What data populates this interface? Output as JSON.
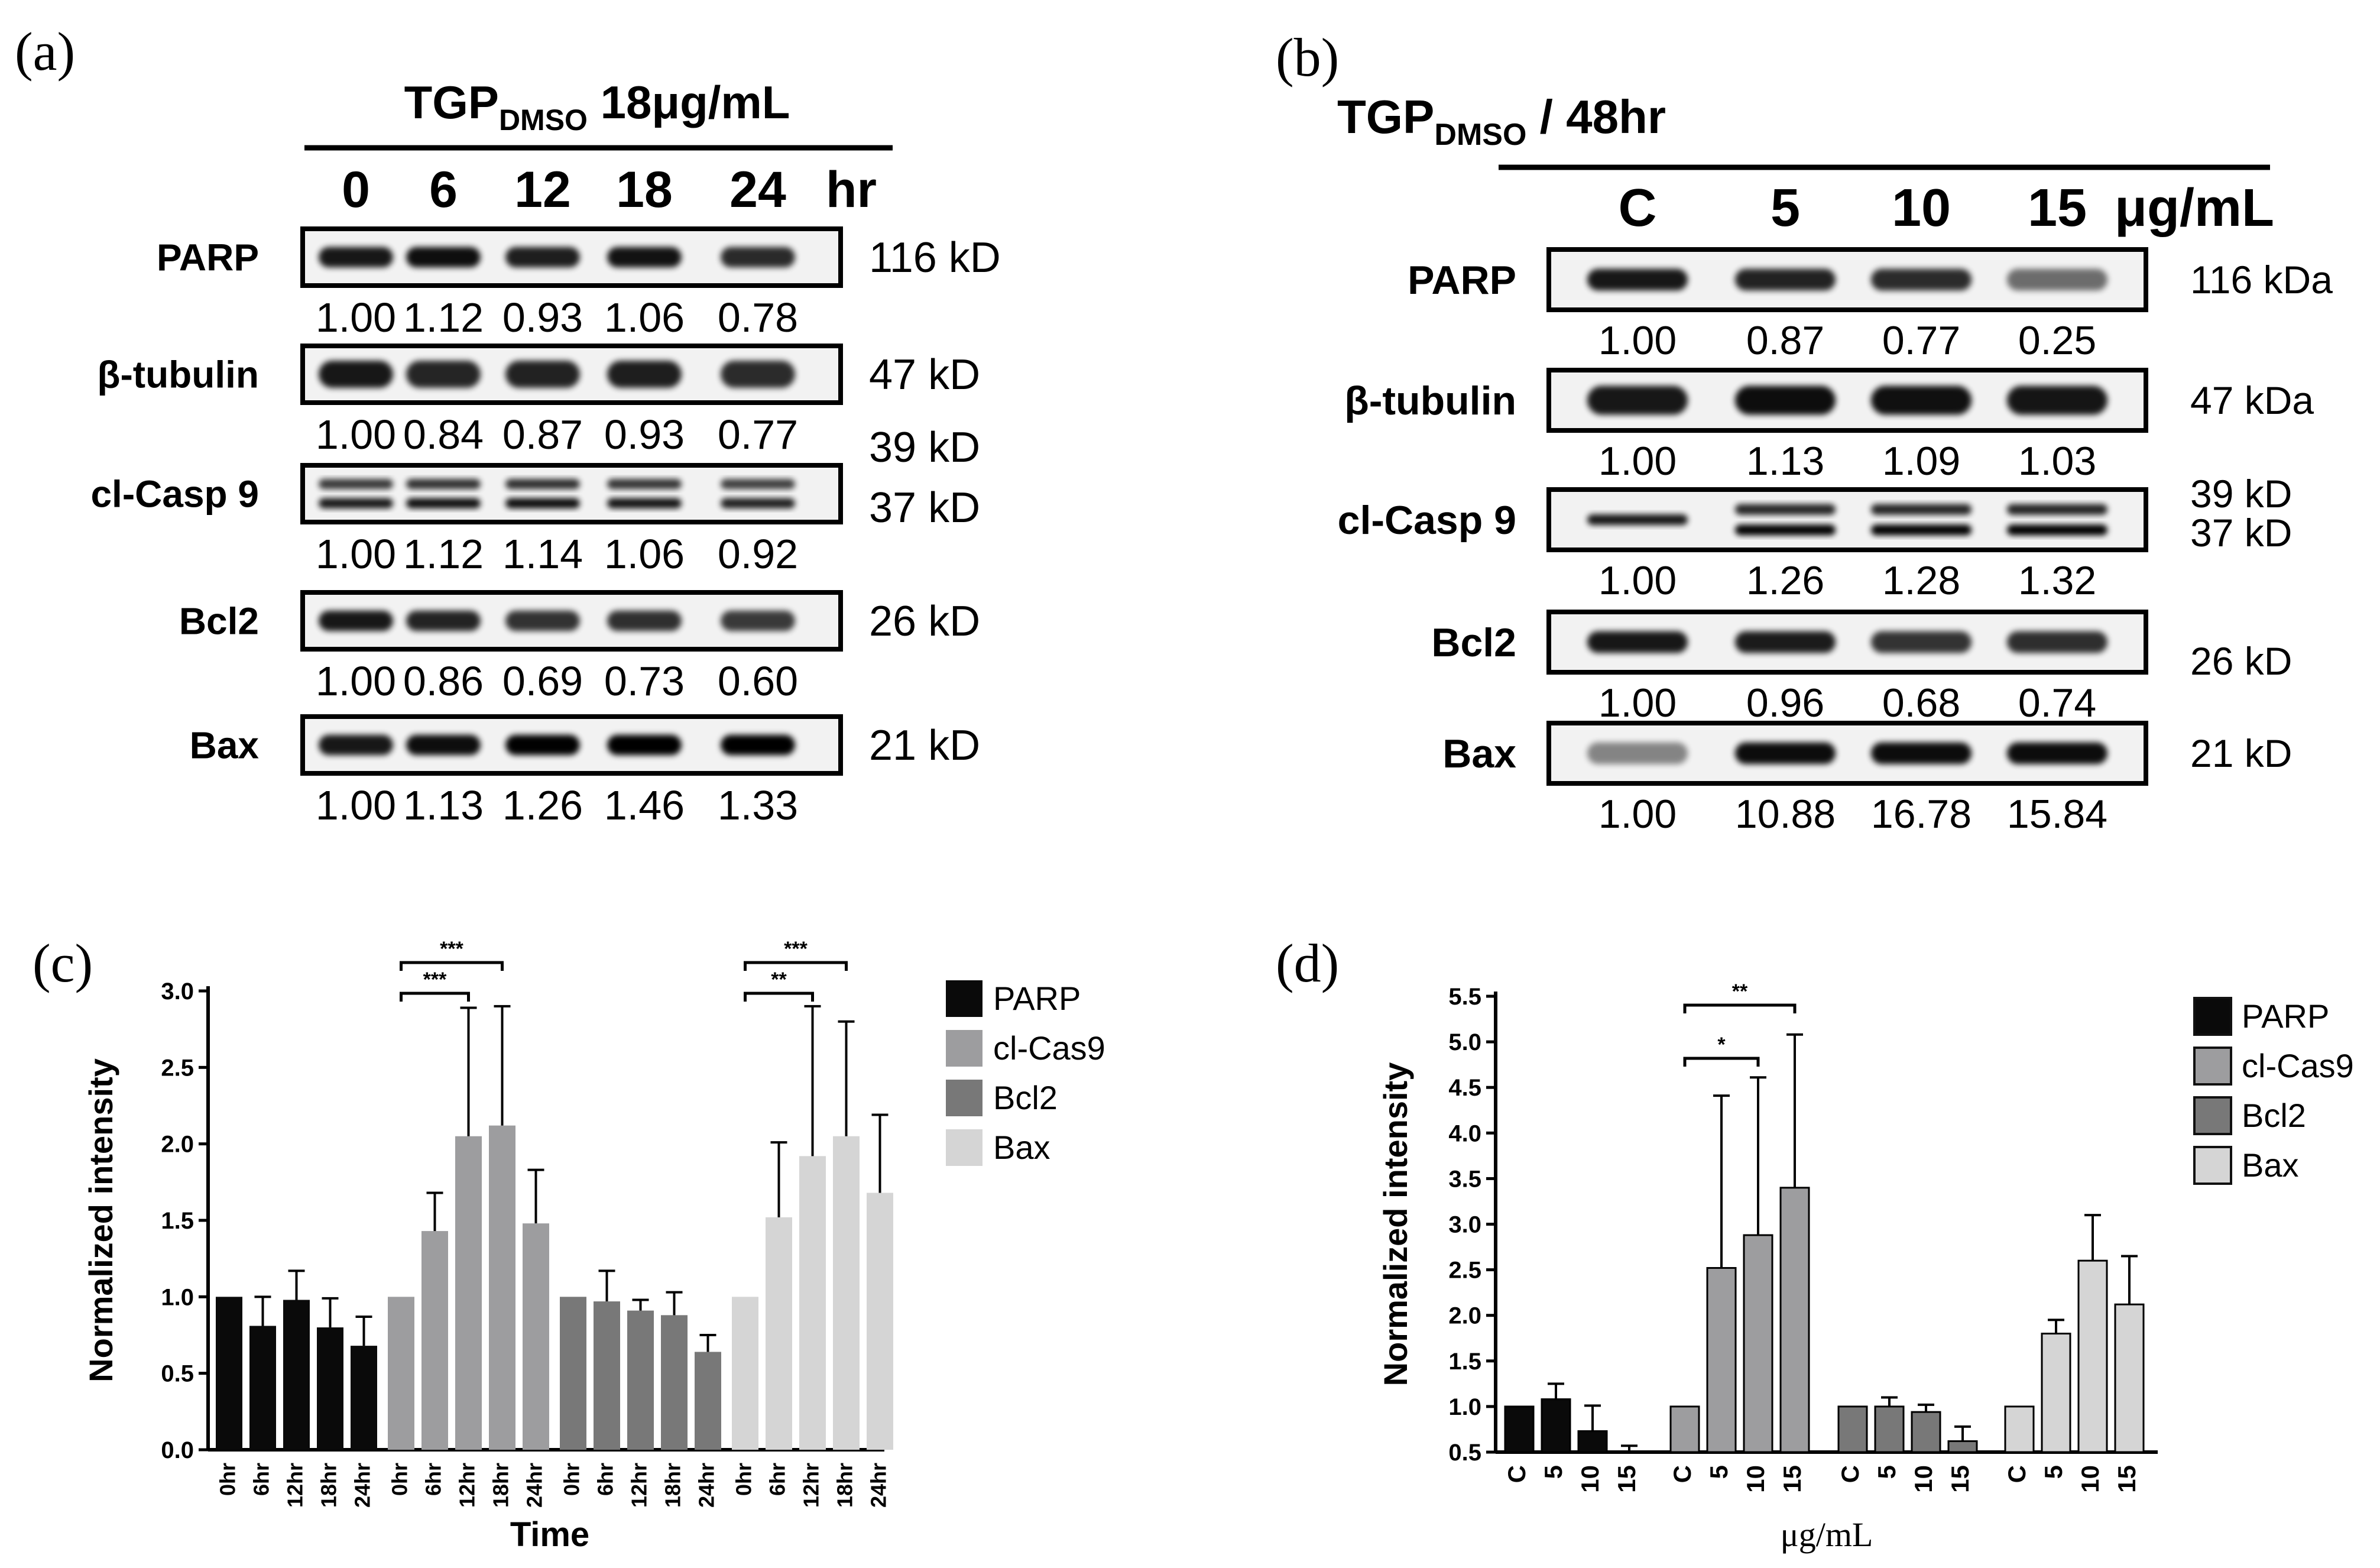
{
  "panels": {
    "a": {
      "label": "(a)",
      "header_main": "TGP",
      "header_sub": "DMSO",
      "header_rest": " 18μg/mL",
      "lane_labels": [
        "0",
        "6",
        "12",
        "18",
        "24"
      ],
      "unit": "hr",
      "rows": [
        {
          "name": "PARP",
          "kd": [
            "116 kD"
          ],
          "values": [
            "1.00",
            "1.12",
            "0.93",
            "1.06",
            "0.78"
          ]
        },
        {
          "name": "β-tubulin",
          "kd": [
            "47 kD"
          ],
          "values": [
            "1.00",
            "0.84",
            "0.87",
            "0.93",
            "0.77"
          ]
        },
        {
          "name": "cl-Casp 9",
          "kd": [
            "39 kD",
            "37 kD"
          ],
          "values": [
            "1.00",
            "1.12",
            "1.14",
            "1.06",
            "0.92"
          ]
        },
        {
          "name": "Bcl2",
          "kd": [
            "26 kD"
          ],
          "values": [
            "1.00",
            "0.86",
            "0.69",
            "0.73",
            "0.60"
          ]
        },
        {
          "name": "Bax",
          "kd": [
            "21 kD"
          ],
          "values": [
            "1.00",
            "1.13",
            "1.26",
            "1.46",
            "1.33"
          ]
        }
      ]
    },
    "b": {
      "label": "(b)",
      "header_main": "TGP",
      "header_sub": "DMSO",
      "header_rest": " / 48hr",
      "lane_labels": [
        "C",
        "5",
        "10",
        "15"
      ],
      "unit": "μg/mL",
      "rows": [
        {
          "name": "PARP",
          "kd": [
            "116 kDa"
          ],
          "values": [
            "1.00",
            "0.87",
            "0.77",
            "0.25"
          ]
        },
        {
          "name": "β-tubulin",
          "kd": [
            "47 kDa"
          ],
          "values": [
            "1.00",
            "1.13",
            "1.09",
            "1.03"
          ]
        },
        {
          "name": "cl-Casp 9",
          "kd": [
            "39 kD",
            "37 kD"
          ],
          "values": [
            "1.00",
            "1.26",
            "1.28",
            "1.32"
          ]
        },
        {
          "name": "Bcl2",
          "kd": [
            "26 kD"
          ],
          "values": [
            "1.00",
            "0.96",
            "0.68",
            "0.74"
          ]
        },
        {
          "name": "Bax",
          "kd": [
            "21 kD"
          ],
          "values": [
            "1.00",
            "10.88",
            "16.78",
            "15.84"
          ]
        }
      ]
    },
    "c": {
      "label": "(c)"
    },
    "d": {
      "label": "(d)"
    }
  },
  "colors": {
    "parp": "#0a0a0a",
    "clcas9": "#9d9d9f",
    "bcl2": "#787878",
    "bax": "#d5d5d5"
  },
  "chart_data": [
    {
      "type": "bar",
      "panel": "c",
      "xlabel": "Time",
      "ylabel": "Normalized intensity",
      "ylim": [
        0,
        3.0
      ],
      "yticks": [
        "0.0",
        "0.5",
        "1.0",
        "1.5",
        "2.0",
        "2.5",
        "3.0"
      ],
      "categories": [
        "0hr",
        "6hr",
        "12hr",
        "18hr",
        "24hr"
      ],
      "series": [
        {
          "name": "PARP",
          "values": [
            1.0,
            0.81,
            0.98,
            0.8,
            0.68
          ],
          "errors": [
            0.0,
            0.19,
            0.19,
            0.19,
            0.19
          ]
        },
        {
          "name": "cl-Cas9",
          "values": [
            1.0,
            1.43,
            2.05,
            2.12,
            1.48
          ],
          "errors": [
            0.0,
            0.25,
            0.84,
            0.78,
            0.35
          ]
        },
        {
          "name": "Bcl2",
          "values": [
            1.0,
            0.97,
            0.91,
            0.88,
            0.64
          ],
          "errors": [
            0.0,
            0.2,
            0.07,
            0.15,
            0.11
          ]
        },
        {
          "name": "Bax",
          "values": [
            1.0,
            1.52,
            1.92,
            2.05,
            1.68
          ],
          "errors": [
            0.0,
            0.49,
            0.98,
            0.75,
            0.51
          ]
        }
      ],
      "significance": [
        {
          "series": "cl-Cas9",
          "from": "0hr",
          "to": "18hr",
          "label": "***"
        },
        {
          "series": "cl-Cas9",
          "from": "0hr",
          "to": "12hr",
          "label": "***"
        },
        {
          "series": "Bax",
          "from": "0hr",
          "to": "18hr",
          "label": "***"
        },
        {
          "series": "Bax",
          "from": "0hr",
          "to": "12hr",
          "label": "**"
        }
      ],
      "legend_position": "right"
    },
    {
      "type": "bar",
      "panel": "d",
      "xlabel": "μg/mL",
      "ylabel": "Normalized intensity",
      "ylim": [
        0.5,
        5.5
      ],
      "yticks": [
        "0.5",
        "1.0",
        "1.5",
        "2.0",
        "2.5",
        "3.0",
        "3.5",
        "4.0",
        "4.5",
        "5.0",
        "5.5"
      ],
      "categories": [
        "C",
        "5",
        "10",
        "15"
      ],
      "series": [
        {
          "name": "PARP",
          "values": [
            1.0,
            1.08,
            0.73,
            0.27
          ],
          "errors": [
            0.0,
            0.17,
            0.28,
            0.3
          ]
        },
        {
          "name": "cl-Cas9",
          "values": [
            1.0,
            2.52,
            2.88,
            3.4
          ],
          "errors": [
            0.0,
            1.89,
            1.73,
            1.68
          ]
        },
        {
          "name": "Bcl2",
          "values": [
            1.0,
            1.0,
            0.94,
            0.62
          ],
          "errors": [
            0.0,
            0.1,
            0.08,
            0.16
          ]
        },
        {
          "name": "Bax",
          "values": [
            1.0,
            1.8,
            2.6,
            2.12
          ],
          "errors": [
            0.0,
            0.15,
            0.5,
            0.53
          ]
        }
      ],
      "significance": [
        {
          "series": "cl-Cas9",
          "from": "C",
          "to": "15",
          "label": "**"
        },
        {
          "series": "cl-Cas9",
          "from": "C",
          "to": "10",
          "label": "*"
        }
      ],
      "legend_position": "right"
    }
  ]
}
